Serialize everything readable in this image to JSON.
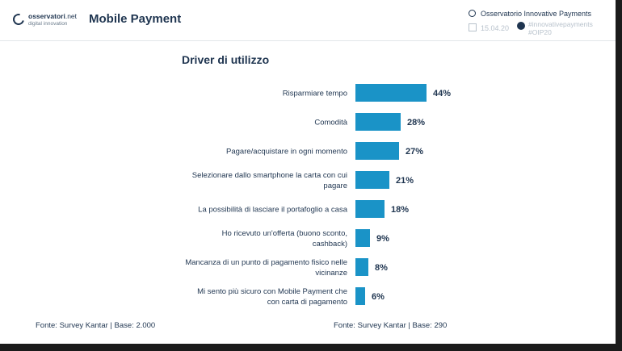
{
  "header": {
    "logo_name": "osservatori",
    "logo_net": ".net",
    "logo_sub": "digital innovation",
    "app_title": "Mobile Payment",
    "org": "Osservatorio Innovative Payments",
    "date": "15.04.20",
    "hashtag1": "#innovativepayments",
    "hashtag2": "#OIP20"
  },
  "chart_data": {
    "type": "bar",
    "orientation": "horizontal",
    "title": "Driver di utilizzo",
    "categories": [
      "Risparmiare tempo",
      "Comodità",
      "Pagare/acquistare in ogni momento",
      "Selezionare dallo smartphone la carta con cui pagare",
      "La possibilità di lasciare il portafoglio a casa",
      "Ho ricevuto un'offerta (buono sconto, cashback)",
      "Mancanza di un punto di pagamento fisico nelle vicinanze",
      "Mi sento più sicuro con Mobile Payment che con carta di pagamento"
    ],
    "category_lines": [
      [
        "Risparmiare tempo"
      ],
      [
        "Comodità"
      ],
      [
        "Pagare/acquistare in ogni momento"
      ],
      [
        "Selezionare dallo smartphone la carta con cui",
        "pagare"
      ],
      [
        "La possibilità di lasciare il portafoglio a casa"
      ],
      [
        "Ho ricevuto un'offerta (buono sconto,",
        "cashback)"
      ],
      [
        "Mancanza di un punto di pagamento fisico nelle",
        "vicinanze"
      ],
      [
        "Mi sento più sicuro con Mobile Payment che",
        "con carta di pagamento"
      ]
    ],
    "values": [
      44,
      28,
      27,
      21,
      18,
      9,
      8,
      6
    ],
    "labels": [
      "44%",
      "28%",
      "27%",
      "21%",
      "18%",
      "9%",
      "8%",
      "6%"
    ],
    "bar_color": "#1a93c7"
  },
  "footer": {
    "left": "Fonte: Survey Kantar | Base: 2.000",
    "right": "Fonte: Survey Kantar | Base: 290"
  }
}
